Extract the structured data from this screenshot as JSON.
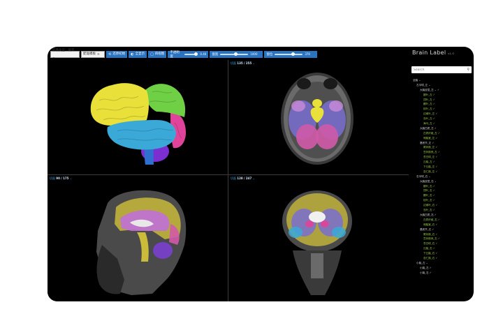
{
  "toolbar": {
    "select1": "影像类型：概率 ⌄",
    "select2": "配准模板",
    "select2_suffix": "④",
    "btn_reset": "还原初始",
    "btn_reset_icon": "⟲",
    "btn_display": "全显示",
    "btn_display_icon": "◐",
    "btn_layout": "四视图",
    "btn_layout_icon": "▢",
    "slider_opacity": {
      "label": "不透明度",
      "value": "0.40"
    },
    "slider_window": {
      "label": "窗宽",
      "value": "1000"
    },
    "slider_level": {
      "label": "窗位",
      "value": "370"
    }
  },
  "brand": {
    "name": "Brain Label",
    "suffix": "v1.0"
  },
  "viewports": [
    {
      "name": "3d",
      "label": ""
    },
    {
      "name": "axial",
      "prefix": "切面",
      "slice": "135 / 255",
      "suffix": "⌄"
    },
    {
      "name": "sagittal",
      "prefix": "切面",
      "slice": "90 / 175",
      "suffix": "⌄"
    },
    {
      "name": "coronal",
      "prefix": "切面",
      "slice": "128 / 247",
      "suffix": "⌄"
    }
  ],
  "search": {
    "placeholder": "Search",
    "icon": "search-icon"
  },
  "tree": [
    {
      "level": 0,
      "text": "全脑 ⌄",
      "type": "root"
    },
    {
      "level": 1,
      "text": "左半球_左 ⌄",
      "type": "group"
    },
    {
      "level": 2,
      "text": "大脑皮层_左 ⌄ ✓",
      "type": "group"
    },
    {
      "level": 3,
      "text": "额叶_左 ✓",
      "type": "leaf"
    },
    {
      "level": 3,
      "text": "顶叶_左 ✓",
      "type": "leaf"
    },
    {
      "level": 3,
      "text": "颞叶_左 ✓",
      "type": "leaf"
    },
    {
      "level": 3,
      "text": "枕叶_左 ✓",
      "type": "leaf"
    },
    {
      "level": 3,
      "text": "边缘叶_左 ✓",
      "type": "leaf"
    },
    {
      "level": 3,
      "text": "岛叶_左 ✓",
      "type": "leaf"
    },
    {
      "level": 3,
      "text": "海马_左 ✓",
      "type": "leaf"
    },
    {
      "level": 2,
      "text": "大脑白质_左 ✓",
      "type": "group"
    },
    {
      "level": 3,
      "text": "白质纤维_左 ✓",
      "type": "leaf"
    },
    {
      "level": 3,
      "text": "侧脑室_左 ✓",
      "type": "leaf"
    },
    {
      "level": 2,
      "text": "基底节_左 ✓",
      "type": "group"
    },
    {
      "level": 3,
      "text": "尾状核_左 ✓",
      "type": "leaf"
    },
    {
      "level": 3,
      "text": "豆状核壳_左 ✓",
      "type": "leaf"
    },
    {
      "level": 3,
      "text": "苍白球_左 ✓",
      "type": "leaf"
    },
    {
      "level": 3,
      "text": "丘脑_左 ✓",
      "type": "leaf"
    },
    {
      "level": 3,
      "text": "下丘脑_左 ✓",
      "type": "leaf"
    },
    {
      "level": 3,
      "text": "杏仁核_左 ✓",
      "type": "leaf"
    },
    {
      "level": 1,
      "text": "右半球_右 ⌄",
      "type": "group"
    },
    {
      "level": 2,
      "text": "大脑皮层_右 ⌄",
      "type": "group"
    },
    {
      "level": 3,
      "text": "额叶_右 ✓",
      "type": "leaf"
    },
    {
      "level": 3,
      "text": "顶叶_右 ✓",
      "type": "leaf"
    },
    {
      "level": 3,
      "text": "颞叶_右 ✓",
      "type": "leaf"
    },
    {
      "level": 3,
      "text": "枕叶_右 ✓",
      "type": "leaf"
    },
    {
      "level": 3,
      "text": "边缘叶_右 ✓",
      "type": "leaf"
    },
    {
      "level": 3,
      "text": "岛叶_右 ✓",
      "type": "leaf"
    },
    {
      "level": 2,
      "text": "大脑白质_右 ✓",
      "type": "group"
    },
    {
      "level": 3,
      "text": "白质纤维_右 ✓",
      "type": "leaf"
    },
    {
      "level": 3,
      "text": "侧脑室_右 ✓",
      "type": "leaf"
    },
    {
      "level": 2,
      "text": "基底节_右 ✓",
      "type": "group"
    },
    {
      "level": 3,
      "text": "尾状核_右 ✓",
      "type": "leaf"
    },
    {
      "level": 3,
      "text": "豆状核壳_右 ✓",
      "type": "leaf"
    },
    {
      "level": 3,
      "text": "苍白球_右 ✓",
      "type": "leaf"
    },
    {
      "level": 3,
      "text": "丘脑_右 ✓",
      "type": "leaf"
    },
    {
      "level": 3,
      "text": "下丘脑_右 ✓",
      "type": "leaf"
    },
    {
      "level": 3,
      "text": "杏仁核_右 ✓",
      "type": "leaf"
    },
    {
      "level": 1,
      "text": "小脑_左 ⌄",
      "type": "group"
    },
    {
      "level": 2,
      "text": "小脑_左 ✓",
      "type": "group"
    },
    {
      "level": 2,
      "text": "小脑_右 ✓",
      "type": "group"
    }
  ],
  "colors": {
    "accent": "#2a73c0",
    "leaf": "#9acd48",
    "frontal": "#e9e03a",
    "parietal": "#6fcf45",
    "temporal": "#3aa9d8",
    "occipital": "#e0449a",
    "cerebellum": "#7b2fd0",
    "brainstem": "#3070c8"
  }
}
